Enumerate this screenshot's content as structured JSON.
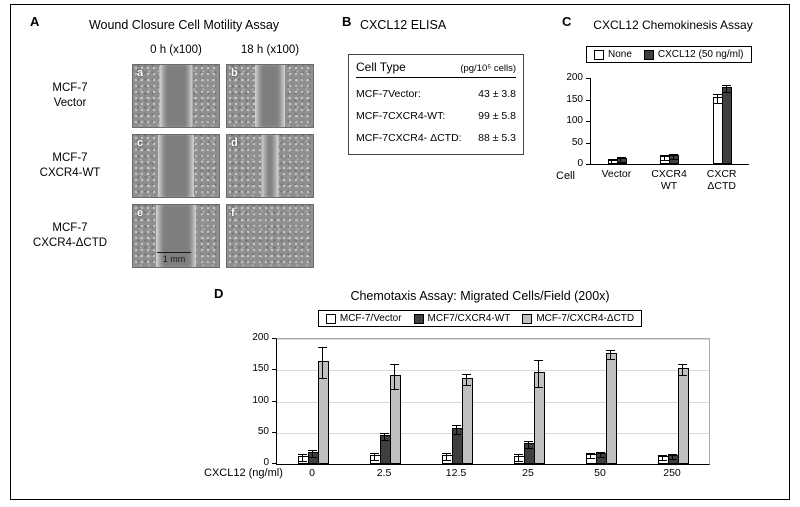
{
  "figure": {
    "background": "#ffffff",
    "border_color": "#000000"
  },
  "panelA": {
    "label": "A",
    "title": "Wound Closure Cell Motility Assay",
    "col_headers": [
      "0 h (x100)",
      "18 h (x100)"
    ],
    "rows": [
      {
        "label": "MCF-7\nVector",
        "images": [
          {
            "letter": "a",
            "wound_pct": 38
          },
          {
            "letter": "b",
            "wound_pct": 35
          }
        ]
      },
      {
        "label": "MCF-7\nCXCR4-WT",
        "images": [
          {
            "letter": "c",
            "wound_pct": 42
          },
          {
            "letter": "d",
            "wound_pct": 20
          }
        ]
      },
      {
        "label": "MCF-7\nCXCR4-ΔCTD",
        "images": [
          {
            "letter": "e",
            "wound_pct": 46,
            "scale_bar": "1 mm"
          },
          {
            "letter": "f",
            "wound_pct": 0
          }
        ]
      }
    ]
  },
  "panelB": {
    "label": "B",
    "title": "CXCL12 ELISA",
    "table": {
      "header_left": "Cell Type",
      "header_right": "(pg/10⁵ cells)",
      "rows": [
        {
          "name": "MCF-7Vector:",
          "value": "43 ± 3.8"
        },
        {
          "name": "MCF-7CXCR4-WT:",
          "value": "99 ± 5.8"
        },
        {
          "name": "MCF-7CXCR4- ΔCTD:",
          "value": "88 ± 5.3"
        }
      ]
    }
  },
  "panelC": {
    "label": "C"
  },
  "panelD": {
    "label": "D"
  },
  "chart_data": [
    {
      "id": "panelC",
      "type": "bar",
      "title": "CXCL12 Chemokinesis Assay",
      "categories": [
        "Vector",
        "CXCR4\nWT",
        "CXCR\nΔCTD"
      ],
      "axis_corner_label": "Cell",
      "series": [
        {
          "name": "None",
          "color": "#ffffff",
          "values": [
            10,
            19,
            156
          ],
          "errors": [
            2,
            3,
            9
          ]
        },
        {
          "name": "CXCL12 (50 ng/ml)",
          "color": "#3f3f3f",
          "values": [
            14,
            20,
            180
          ],
          "errors": [
            2,
            3,
            6
          ]
        }
      ],
      "ylim": [
        0,
        200
      ],
      "yticks": [
        0,
        50,
        100,
        150,
        200
      ],
      "grid": false,
      "legend_position": "top"
    },
    {
      "id": "panelD",
      "type": "bar",
      "title": "Chemotaxis Assay: Migrated Cells/Field (200x)",
      "categories": [
        "0",
        "2.5",
        "12.5",
        "25",
        "50",
        "250"
      ],
      "xlabel": "CXCL12 (ng/ml)",
      "series": [
        {
          "name": "MCF-7/Vector",
          "color": "#ffffff",
          "values": [
            13,
            14,
            14,
            13,
            16,
            13
          ],
          "errors": [
            4,
            4,
            4,
            4,
            3,
            3
          ]
        },
        {
          "name": "MCF7/CXCR4-WT",
          "color": "#3f3f3f",
          "values": [
            19,
            46,
            57,
            34,
            18,
            14
          ],
          "errors": [
            5,
            5,
            6,
            4,
            3,
            3
          ]
        },
        {
          "name": "MCF-7/CXCR4-ΔCTD",
          "color": "#c0c0c0",
          "values": [
            165,
            142,
            137,
            147,
            178,
            154
          ],
          "errors": [
            24,
            19,
            8,
            21,
            6,
            8
          ]
        }
      ],
      "ylim": [
        0,
        200
      ],
      "yticks": [
        0,
        50,
        100,
        150,
        200
      ],
      "grid": true,
      "legend_position": "top"
    }
  ]
}
